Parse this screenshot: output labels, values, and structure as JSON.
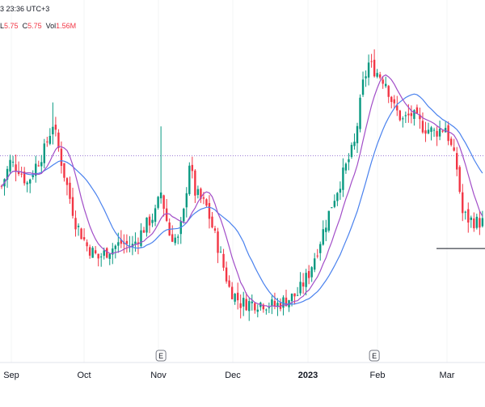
{
  "header": {
    "time_fragment": "3 23:36 UTC+3",
    "low_label": "L",
    "low_value": "5.75",
    "close_label": "C",
    "close_value": "5.75",
    "vol_label": "Vol",
    "vol_value": "1.56M"
  },
  "events": [
    {
      "label": "E",
      "x_index": 56
    },
    {
      "label": "E",
      "x_index": 131
    }
  ],
  "colors": {
    "up": "#089981",
    "down": "#f23645",
    "ma_fast": "#a24ec8",
    "ma_slow": "#4a82ee",
    "dotted": "#9c7cd6"
  },
  "chart_data": {
    "type": "candlestick",
    "x_labels": [
      "Sep",
      "Oct",
      "Nov",
      "Dec",
      "2023",
      "Feb",
      "Mar"
    ],
    "y_unit": "relative price level (no axis printed)",
    "y_range": [
      0,
      1
    ],
    "series": [
      {
        "name": "",
        "kind": "ohlc",
        "note": "~170 daily candles, trend shape approximated"
      },
      {
        "name": "",
        "kind": "moving-average-fast"
      },
      {
        "name": "",
        "kind": "moving-average-slow"
      }
    ],
    "reference_lines": [
      {
        "kind": "dotted-horizontal",
        "y": 0.642
      },
      {
        "kind": "solid-horizontal",
        "y": 0.332
      }
    ],
    "keypoints": [
      [
        0,
        0.54
      ],
      [
        3,
        0.62
      ],
      [
        6,
        0.6
      ],
      [
        9,
        0.55
      ],
      [
        12,
        0.61
      ],
      [
        15,
        0.66
      ],
      [
        18,
        0.75
      ],
      [
        22,
        0.58
      ],
      [
        26,
        0.42
      ],
      [
        30,
        0.34
      ],
      [
        34,
        0.3
      ],
      [
        38,
        0.33
      ],
      [
        42,
        0.35
      ],
      [
        46,
        0.34
      ],
      [
        50,
        0.4
      ],
      [
        54,
        0.45
      ],
      [
        56,
        0.52
      ],
      [
        59,
        0.38
      ],
      [
        62,
        0.36
      ],
      [
        64,
        0.45
      ],
      [
        66,
        0.62
      ],
      [
        68,
        0.52
      ],
      [
        72,
        0.47
      ],
      [
        76,
        0.34
      ],
      [
        80,
        0.2
      ],
      [
        84,
        0.15
      ],
      [
        88,
        0.15
      ],
      [
        92,
        0.15
      ],
      [
        96,
        0.14
      ],
      [
        100,
        0.16
      ],
      [
        104,
        0.18
      ],
      [
        108,
        0.25
      ],
      [
        112,
        0.36
      ],
      [
        116,
        0.48
      ],
      [
        120,
        0.58
      ],
      [
        124,
        0.68
      ],
      [
        127,
        0.88
      ],
      [
        129,
        0.95
      ],
      [
        132,
        0.92
      ],
      [
        135,
        0.89
      ],
      [
        138,
        0.8
      ],
      [
        141,
        0.76
      ],
      [
        144,
        0.78
      ],
      [
        148,
        0.74
      ],
      [
        152,
        0.72
      ],
      [
        156,
        0.74
      ],
      [
        160,
        0.6
      ],
      [
        162,
        0.45
      ],
      [
        164,
        0.43
      ],
      [
        167,
        0.42
      ]
    ]
  }
}
